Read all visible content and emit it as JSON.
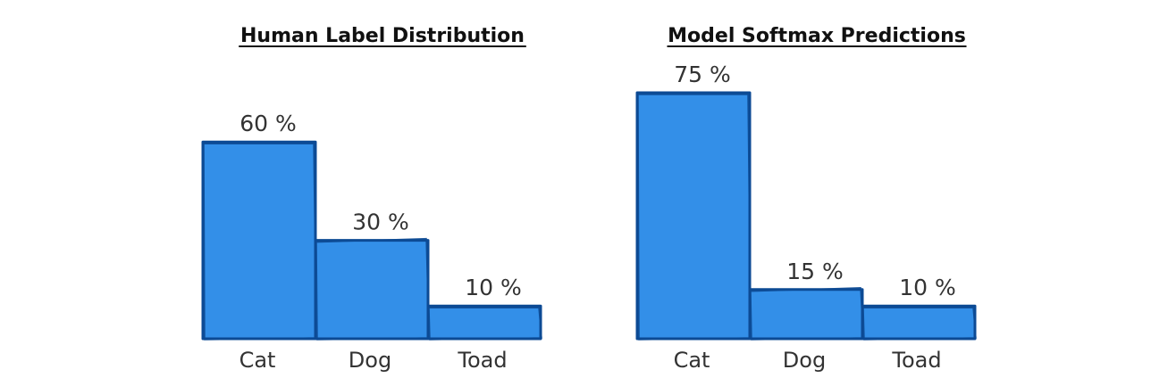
{
  "chart_data": [
    {
      "type": "bar",
      "title": "Human Label Distribution",
      "categories": [
        "Cat",
        "Dog",
        "Toad"
      ],
      "values": [
        60,
        30,
        10
      ],
      "value_labels": [
        "60 %",
        "30 %",
        "10 %"
      ],
      "unit": "%",
      "ylim": [
        0,
        75
      ],
      "grid": false,
      "legend": "none"
    },
    {
      "type": "bar",
      "title": "Model Softmax Predictions",
      "categories": [
        "Cat",
        "Dog",
        "Toad"
      ],
      "values": [
        75,
        15,
        10
      ],
      "value_labels": [
        "75 %",
        "15 %",
        "10 %"
      ],
      "unit": "%",
      "ylim": [
        0,
        75
      ],
      "grid": false,
      "legend": "none"
    }
  ],
  "colors": {
    "bar_fill": "#338fe8",
    "bar_stroke": "#0c4a94",
    "text": "#333333",
    "title": "#111111"
  }
}
